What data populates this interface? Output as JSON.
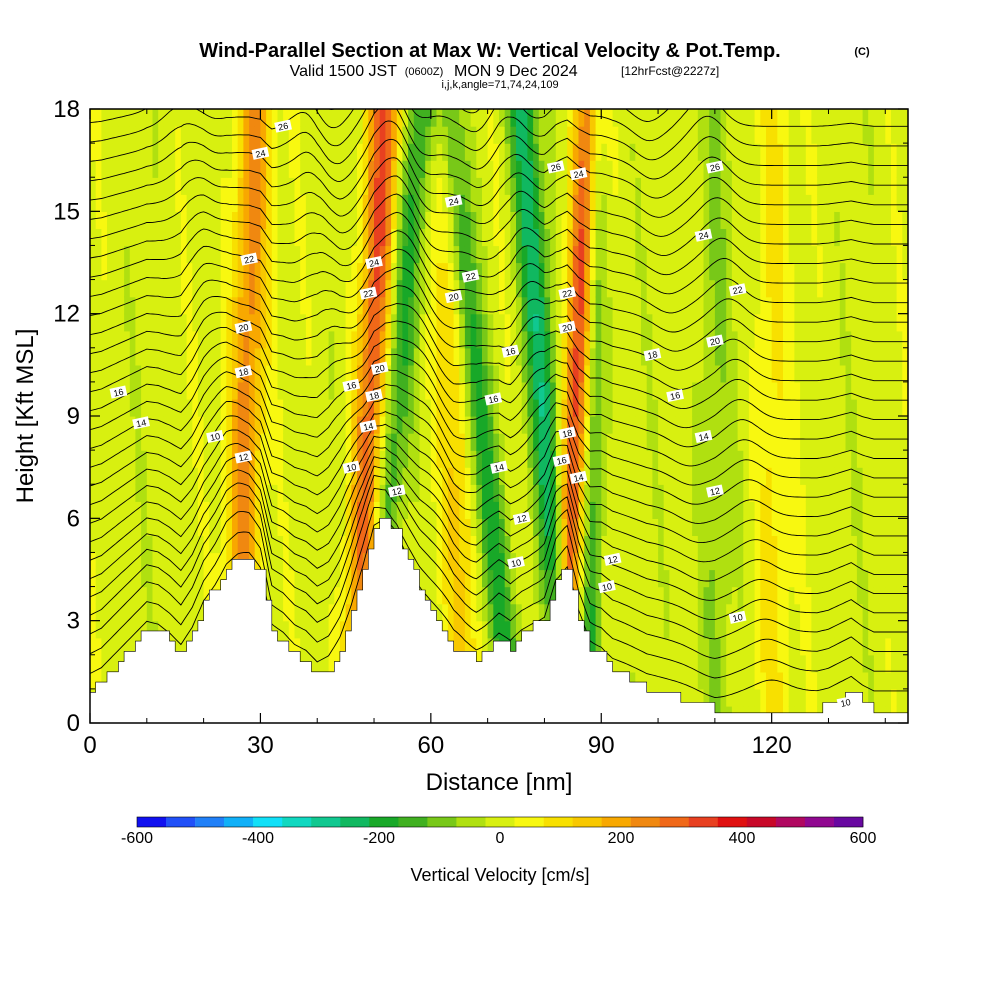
{
  "chart_data": {
    "type": "heatmap",
    "title": "Wind-Parallel Section at Max W: Vertical Velocity & Pot.Temp.",
    "title_mark": "(C)",
    "subtitle_parts": [
      "Valid 1500 JST",
      "(0600Z)",
      "MON 9 Dec 2024",
      "[12hrFcst@2227z]"
    ],
    "subtitle2": "i,j,k,angle=71,74,24,109",
    "xlabel": "Distance [nm]",
    "ylabel": "Height [Kft MSL]",
    "xlim": [
      0,
      144
    ],
    "ylim": [
      0,
      18
    ],
    "xticks": [
      "0",
      "30",
      "60",
      "90",
      "120"
    ],
    "yticks": [
      "0",
      "3",
      "6",
      "9",
      "12",
      "15",
      "18"
    ],
    "colorbar": {
      "label": "Vertical Velocity [cm/s]",
      "range": [
        -600,
        600
      ],
      "ticks": [
        "-600",
        "-400",
        "-200",
        "0",
        "200",
        "400",
        "600"
      ],
      "colors": [
        "#1010f0",
        "#2050f8",
        "#2080f8",
        "#10b0f8",
        "#10e0f8",
        "#10d8c0",
        "#10c890",
        "#10b860",
        "#18a828",
        "#40b020",
        "#78c818",
        "#b0e010",
        "#d8f010",
        "#f8f810",
        "#f8e000",
        "#f8c800",
        "#f8a800",
        "#f08810",
        "#f06818",
        "#e84020",
        "#e01010",
        "#c80828",
        "#b00860",
        "#900890",
        "#6808a0"
      ]
    },
    "terrain": {
      "x": [
        0,
        2,
        4,
        6,
        8,
        10,
        12,
        14,
        16,
        18,
        20,
        22,
        24,
        26,
        28,
        30,
        32,
        34,
        36,
        38,
        40,
        42,
        44,
        46,
        48,
        50,
        52,
        54,
        56,
        58,
        60,
        62,
        64,
        66,
        68,
        70,
        72,
        74,
        76,
        78,
        80,
        82,
        84,
        86,
        88,
        90,
        92,
        94,
        96,
        98,
        100,
        102,
        104,
        106,
        108,
        110,
        112,
        114,
        116,
        118,
        120,
        122,
        124,
        126,
        128,
        130,
        132,
        134,
        136,
        138,
        140,
        142,
        144
      ],
      "height_kft": [
        1.0,
        1.2,
        1.6,
        2.0,
        2.4,
        2.8,
        2.7,
        2.4,
        2.0,
        2.6,
        3.5,
        4.0,
        4.6,
        4.8,
        4.8,
        4.4,
        2.6,
        2.4,
        2.0,
        1.8,
        1.4,
        1.6,
        2.2,
        3.2,
        4.4,
        5.8,
        6.0,
        5.6,
        4.8,
        4.0,
        3.4,
        2.8,
        2.2,
        2.0,
        1.9,
        2.2,
        2.5,
        2.2,
        2.6,
        2.9,
        3.1,
        4.2,
        4.5,
        3.0,
        2.1,
        2.0,
        1.6,
        1.4,
        1.2,
        1.0,
        0.9,
        0.8,
        0.7,
        0.6,
        0.5,
        0.4,
        0.4,
        0.4,
        0.4,
        0.4,
        0.4,
        0.4,
        0.4,
        0.4,
        0.4,
        0.5,
        0.7,
        0.9,
        0.6,
        0.4,
        0.4,
        0.4,
        0.4
      ]
    },
    "w_features": [
      {
        "x_base": 26,
        "x_top": 29,
        "peak_cm_s": 250,
        "width_nm": 3
      },
      {
        "x_base": 47,
        "x_top": 52,
        "peak_cm_s": 320,
        "width_nm": 3
      },
      {
        "x_base": 49,
        "x_top": 58,
        "peak_cm_s": -200,
        "width_nm": 3
      },
      {
        "x_base": 66,
        "x_top": 62,
        "peak_cm_s": 150,
        "width_nm": 3
      },
      {
        "x_base": 74,
        "x_top": 63,
        "peak_cm_s": -220,
        "width_nm": 2.5
      },
      {
        "x_base": 83,
        "x_top": 88,
        "peak_cm_s": 350,
        "width_nm": 2.5
      },
      {
        "x_base": 84,
        "x_top": 76,
        "peak_cm_s": -260,
        "width_nm": 2.5
      },
      {
        "x_base": 88,
        "x_top": 89,
        "peak_cm_s": -180,
        "width_nm": 2
      },
      {
        "x_base": 110,
        "x_top": 110,
        "peak_cm_s": -80,
        "width_nm": 3
      },
      {
        "x_base": 120,
        "x_top": 120,
        "peak_cm_s": 90,
        "width_nm": 3
      }
    ],
    "contour_labels": [
      {
        "text": "26",
        "x": 34,
        "y": 17.5
      },
      {
        "text": "24",
        "x": 30,
        "y": 16.7
      },
      {
        "text": "22",
        "x": 28,
        "y": 13.6
      },
      {
        "text": "20",
        "x": 27,
        "y": 11.6
      },
      {
        "text": "18",
        "x": 27,
        "y": 10.3
      },
      {
        "text": "16",
        "x": 5,
        "y": 9.7
      },
      {
        "text": "14",
        "x": 9,
        "y": 8.8
      },
      {
        "text": "10",
        "x": 22,
        "y": 8.4
      },
      {
        "text": "12",
        "x": 27,
        "y": 7.8
      },
      {
        "text": "24",
        "x": 50,
        "y": 13.5
      },
      {
        "text": "22",
        "x": 49,
        "y": 12.6
      },
      {
        "text": "20",
        "x": 51,
        "y": 10.4
      },
      {
        "text": "18",
        "x": 50,
        "y": 9.6
      },
      {
        "text": "16",
        "x": 46,
        "y": 9.9
      },
      {
        "text": "14",
        "x": 49,
        "y": 8.7
      },
      {
        "text": "12",
        "x": 54,
        "y": 6.8
      },
      {
        "text": "10",
        "x": 46,
        "y": 7.5
      },
      {
        "text": "24",
        "x": 64,
        "y": 15.3
      },
      {
        "text": "22",
        "x": 67,
        "y": 13.1
      },
      {
        "text": "20",
        "x": 64,
        "y": 12.5
      },
      {
        "text": "16",
        "x": 74,
        "y": 10.9
      },
      {
        "text": "16",
        "x": 71,
        "y": 9.5
      },
      {
        "text": "14",
        "x": 72,
        "y": 7.5
      },
      {
        "text": "12",
        "x": 76,
        "y": 6.0
      },
      {
        "text": "10",
        "x": 75,
        "y": 4.7
      },
      {
        "text": "26",
        "x": 82,
        "y": 16.3
      },
      {
        "text": "24",
        "x": 86,
        "y": 16.1
      },
      {
        "text": "22",
        "x": 84,
        "y": 12.6
      },
      {
        "text": "20",
        "x": 84,
        "y": 11.6
      },
      {
        "text": "18",
        "x": 84,
        "y": 8.5
      },
      {
        "text": "16",
        "x": 83,
        "y": 7.7
      },
      {
        "text": "14",
        "x": 86,
        "y": 7.2
      },
      {
        "text": "12",
        "x": 92,
        "y": 4.8
      },
      {
        "text": "10",
        "x": 91,
        "y": 4.0
      },
      {
        "text": "26",
        "x": 110,
        "y": 16.3
      },
      {
        "text": "24",
        "x": 108,
        "y": 14.3
      },
      {
        "text": "22",
        "x": 114,
        "y": 12.7
      },
      {
        "text": "20",
        "x": 110,
        "y": 11.2
      },
      {
        "text": "18",
        "x": 99,
        "y": 10.8
      },
      {
        "text": "16",
        "x": 103,
        "y": 9.6
      },
      {
        "text": "14",
        "x": 108,
        "y": 8.4
      },
      {
        "text": "12",
        "x": 110,
        "y": 6.8
      },
      {
        "text": "10",
        "x": 114,
        "y": 3.1
      },
      {
        "text": "10",
        "x": 133,
        "y": 0.6
      }
    ]
  }
}
